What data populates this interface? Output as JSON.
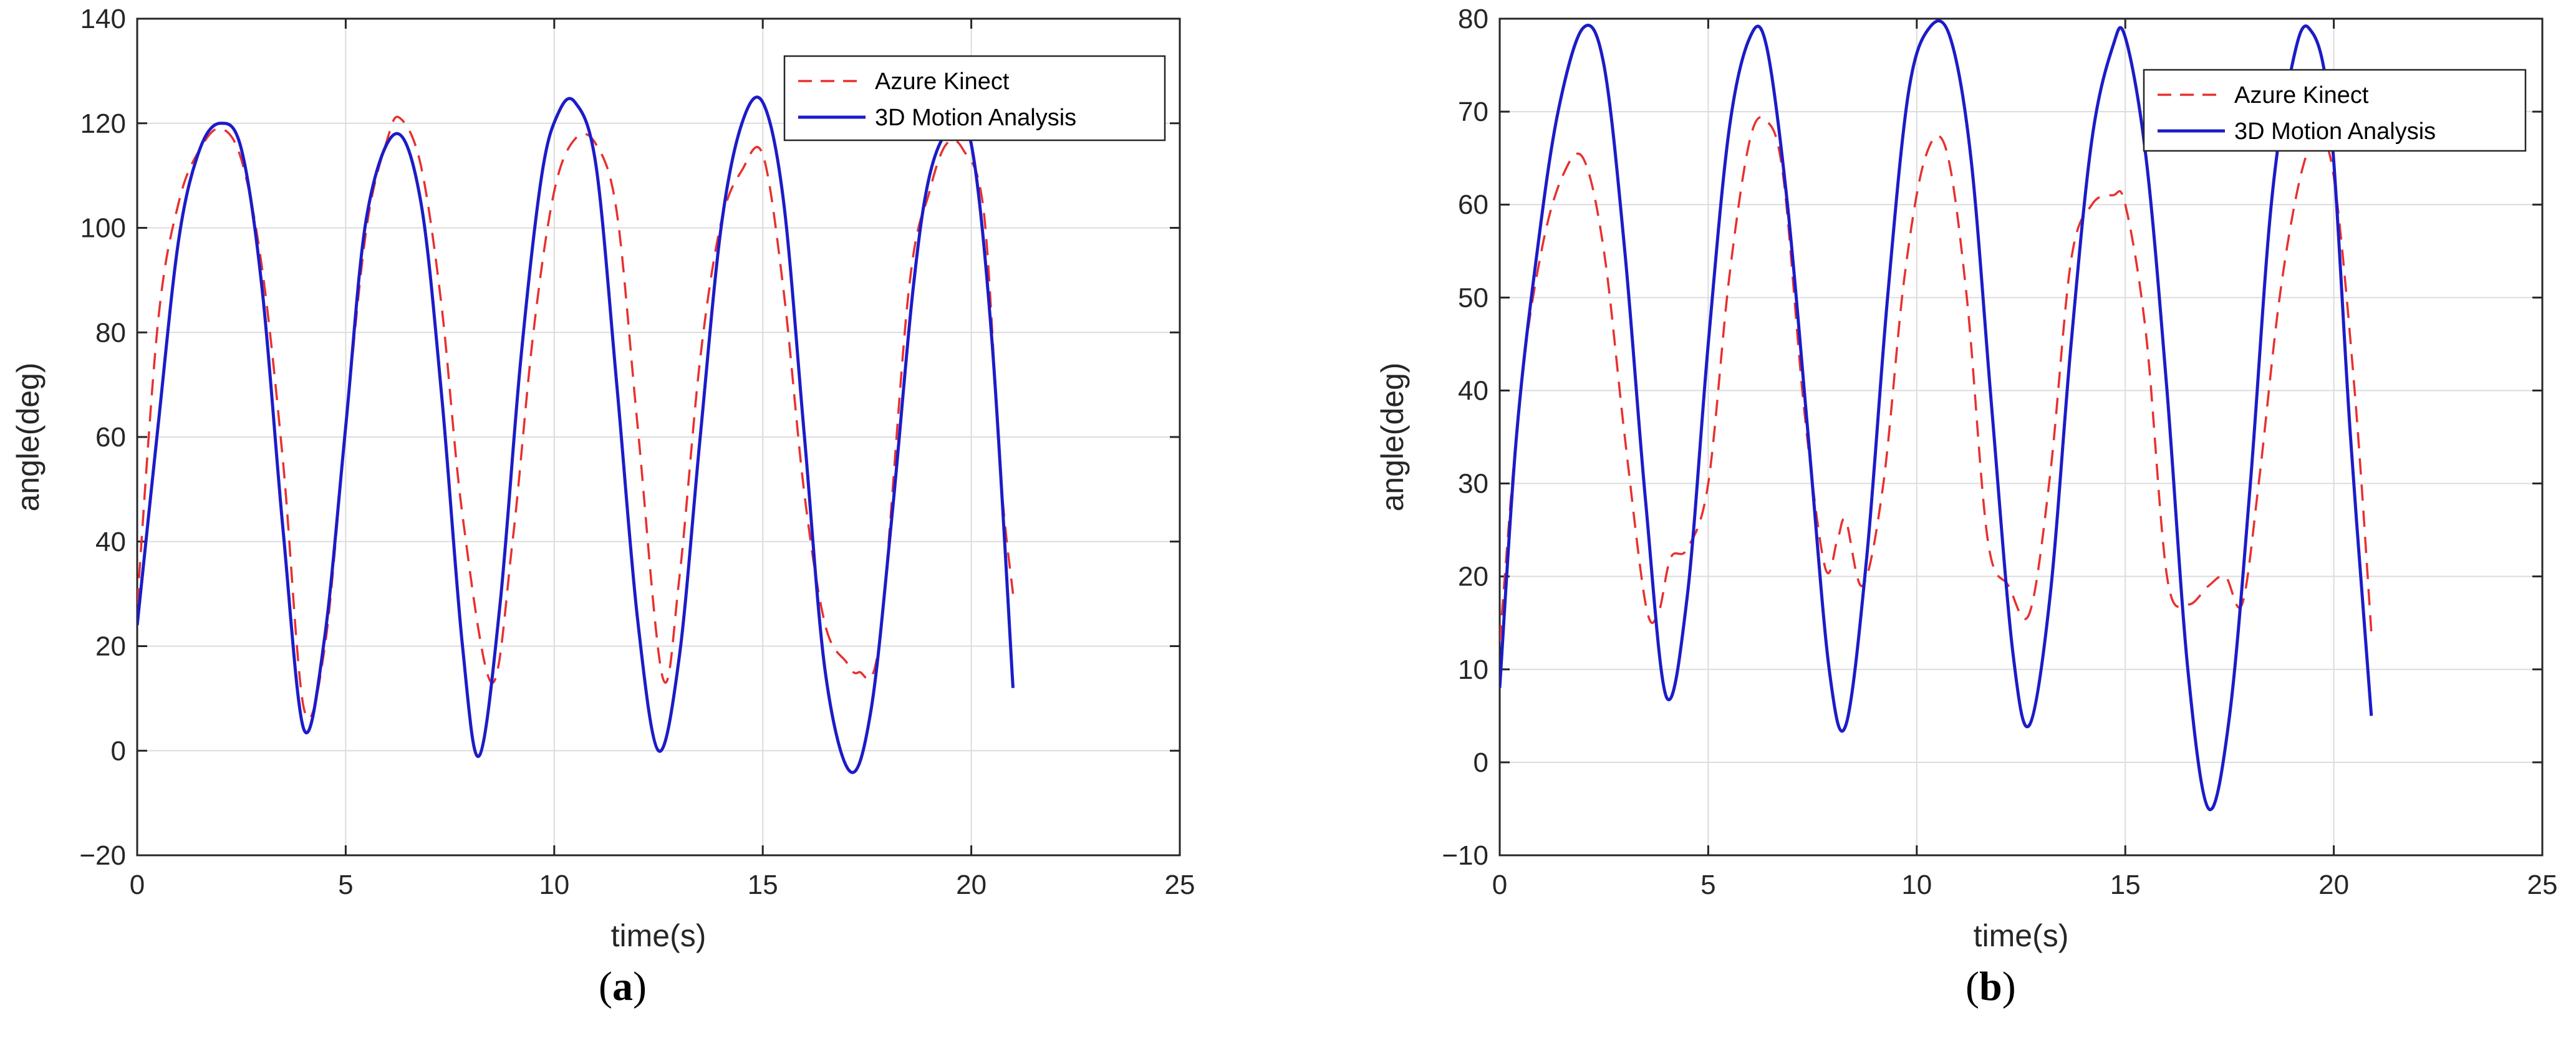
{
  "panels": [
    {
      "label_open": "(",
      "label_letter": "a",
      "label_close": ")"
    },
    {
      "label_open": "(",
      "label_letter": "b",
      "label_close": ")"
    }
  ],
  "chart_data": [
    {
      "type": "line",
      "xlabel": "time(s)",
      "ylabel": "angle(deg)",
      "xlim": [
        0,
        25
      ],
      "ylim": [
        -20,
        140
      ],
      "xticks": [
        0,
        5,
        10,
        15,
        20,
        25
      ],
      "yticks": [
        -20,
        0,
        20,
        40,
        60,
        80,
        100,
        120,
        140
      ],
      "grid": true,
      "legend_position": "top-right",
      "series": [
        {
          "name": "Azure Kinect",
          "color": "#e8302f",
          "style": "dashed",
          "x": [
            0,
            0.5,
            1.0,
            1.5,
            2.0,
            2.5,
            3.0,
            3.5,
            4.0,
            4.5,
            5.0,
            5.5,
            6.0,
            6.3,
            6.8,
            7.3,
            7.8,
            8.5,
            9.0,
            9.5,
            10.0,
            10.5,
            11.0,
            11.5,
            12.0,
            12.6,
            13.0,
            13.5,
            14.0,
            14.5,
            15.0,
            15.5,
            16.0,
            16.5,
            17.0,
            17.3,
            17.8,
            18.5,
            19.0,
            19.4,
            19.8,
            20.3,
            20.7,
            21.0
          ],
          "y": [
            28,
            82,
            105,
            115,
            119,
            113,
            92,
            55,
            8,
            20,
            62,
            100,
            117,
            121,
            112,
            85,
            45,
            13,
            40,
            80,
            107,
            117,
            116,
            103,
            62,
            14,
            33,
            75,
            101,
            111,
            114,
            88,
            49,
            24,
            17,
            15,
            21,
            88,
            107,
            116,
            115,
            103,
            53,
            30
          ]
        },
        {
          "name": "3D Motion Analysis",
          "color": "#1c1cc8",
          "style": "solid",
          "x": [
            0,
            0.5,
            1.0,
            1.5,
            2.0,
            2.5,
            3.0,
            3.5,
            4.0,
            4.5,
            5.0,
            5.5,
            6.2,
            6.8,
            7.3,
            7.8,
            8.2,
            8.7,
            9.2,
            9.7,
            10.1,
            10.5,
            11.0,
            11.5,
            12.0,
            12.5,
            13.0,
            13.5,
            14.0,
            14.5,
            15.0,
            15.5,
            16.0,
            16.5,
            17.1,
            17.6,
            18.1,
            18.6,
            19.0,
            19.5,
            20.0,
            20.5,
            21.0
          ],
          "y": [
            24,
            62,
            98,
            115,
            120,
            115,
            88,
            42,
            4,
            22,
            62,
            102,
            118,
            105,
            68,
            20,
            -1,
            28,
            75,
            110,
            122,
            124,
            112,
            70,
            25,
            0,
            18,
            60,
            100,
            120,
            124,
            105,
            60,
            15,
            -4,
            8,
            45,
            88,
            110,
            119,
            116,
            78,
            12
          ]
        }
      ]
    },
    {
      "type": "line",
      "xlabel": "time(s)",
      "ylabel": "angle(deg)",
      "xlim": [
        0,
        25
      ],
      "ylim": [
        -10,
        80
      ],
      "xticks": [
        0,
        5,
        10,
        15,
        20,
        25
      ],
      "yticks": [
        -10,
        0,
        10,
        20,
        30,
        40,
        50,
        60,
        70,
        80
      ],
      "grid": true,
      "legend_position": "top-right",
      "series": [
        {
          "name": "Azure Kinect",
          "color": "#e8302f",
          "style": "dashed",
          "x": [
            0,
            0.5,
            1.0,
            1.5,
            2.0,
            2.5,
            3.0,
            3.5,
            3.8,
            4.1,
            4.5,
            5.0,
            5.5,
            6.0,
            6.4,
            6.8,
            7.3,
            7.8,
            8.1,
            8.3,
            8.7,
            9.2,
            9.7,
            10.2,
            10.7,
            11.2,
            11.7,
            12.2,
            12.7,
            13.2,
            13.7,
            14.2,
            14.7,
            15.0,
            15.5,
            16.0,
            16.5,
            17.0,
            17.4,
            17.8,
            18.2,
            18.7,
            19.2,
            19.6,
            20.0,
            20.5,
            20.9
          ],
          "y": [
            13,
            40,
            55,
            63,
            65,
            55,
            35,
            17,
            16,
            22,
            23,
            30,
            52,
            67,
            69,
            63,
            38,
            21,
            24,
            26,
            19,
            30,
            52,
            65,
            66,
            50,
            24,
            19,
            16,
            31,
            54,
            60,
            61,
            60,
            46,
            20,
            17,
            19,
            20,
            17,
            30,
            50,
            63,
            67,
            63,
            40,
            14
          ]
        },
        {
          "name": "3D Motion Analysis",
          "color": "#1c1cc8",
          "style": "solid",
          "x": [
            0,
            0.4,
            0.9,
            1.4,
            2.0,
            2.5,
            3.0,
            3.5,
            4.0,
            4.5,
            5.0,
            5.5,
            6.0,
            6.4,
            6.9,
            7.4,
            7.9,
            8.3,
            8.8,
            9.3,
            9.8,
            10.3,
            10.8,
            11.3,
            11.8,
            12.3,
            12.7,
            13.2,
            13.7,
            14.2,
            14.7,
            15.0,
            15.5,
            16.0,
            16.5,
            17.0,
            17.5,
            18.0,
            18.5,
            19.0,
            19.4,
            19.9,
            20.4,
            20.9
          ],
          "y": [
            8,
            35,
            55,
            70,
            79,
            75,
            55,
            28,
            7,
            18,
            45,
            68,
            78,
            77,
            60,
            35,
            10,
            4,
            22,
            50,
            72,
            79,
            78,
            65,
            38,
            12,
            4,
            18,
            45,
            67,
            77,
            78,
            65,
            40,
            10,
            -5,
            5,
            30,
            60,
            75,
            79,
            70,
            35,
            5
          ]
        }
      ]
    }
  ]
}
